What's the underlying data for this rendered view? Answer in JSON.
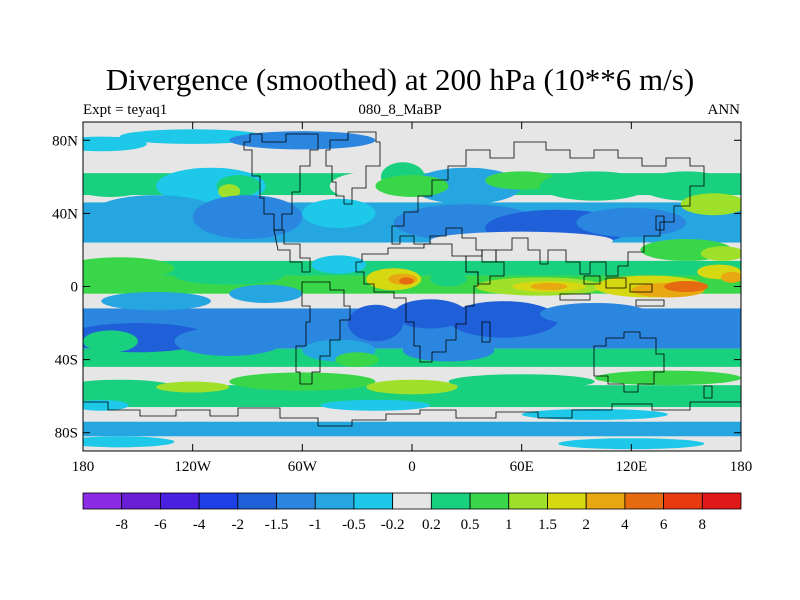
{
  "chart_data": {
    "type": "heatmap",
    "title": "Divergence (smoothed) at 200 hPa (10**6 m/s)",
    "subtitle_left": "Expt = teyaq1",
    "subtitle_center": "080_8_MaBP",
    "subtitle_right": "ANN",
    "x_ticks": [
      "180",
      "120W",
      "60W",
      "0",
      "60E",
      "120E",
      "180"
    ],
    "x_tick_values": [
      -180,
      -120,
      -60,
      0,
      60,
      120,
      180
    ],
    "y_ticks": [
      "80N",
      "40N",
      "0",
      "40S",
      "80S"
    ],
    "y_tick_values": [
      80,
      40,
      0,
      -40,
      -80
    ],
    "xlim": [
      -180,
      180
    ],
    "ylim": [
      -90,
      90
    ],
    "colorbar": {
      "levels": [
        "-8",
        "-6",
        "-4",
        "-2",
        "-1.5",
        "-1",
        "-0.5",
        "-0.2",
        "0.2",
        "0.5",
        "1",
        "1.5",
        "2",
        "4",
        "6",
        "8"
      ],
      "colors": [
        "#8b2be6",
        "#6a1fd6",
        "#4b1fe0",
        "#1f3fe6",
        "#1f5fd8",
        "#2a86de",
        "#26a6e0",
        "#1ec8e8",
        "#e6e6e6",
        "#19d07f",
        "#3ad64a",
        "#9ee02a",
        "#d6d812",
        "#e8a812",
        "#e66a10",
        "#e83a10",
        "#e01818"
      ]
    }
  }
}
